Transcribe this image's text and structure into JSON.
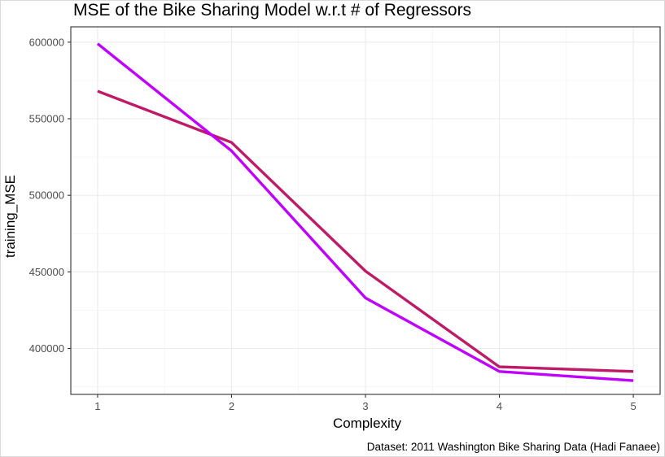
{
  "chart_data": {
    "type": "line",
    "title": "MSE of the Bike Sharing Model w.r.t # of Regressors",
    "xlabel": "Complexity",
    "ylabel": "training_MSE",
    "caption": "Dataset: 2011 Washington Bike Sharing Data (Hadi Fanaee)",
    "x": [
      1,
      2,
      3,
      4,
      5
    ],
    "xticks": [
      "1",
      "2",
      "3",
      "4",
      "5"
    ],
    "yticks": [
      "400000",
      "450000",
      "500000",
      "550000",
      "600000"
    ],
    "ytick_values": [
      400000,
      450000,
      500000,
      550000,
      600000
    ],
    "xlim": [
      0.8,
      5.2
    ],
    "ylim": [
      370000,
      610000
    ],
    "grid": true,
    "legend": "none",
    "series": [
      {
        "color": "#be1a67",
        "values": [
          568000,
          534500,
          450500,
          388000,
          385000
        ]
      },
      {
        "color": "#c000ff",
        "values": [
          599000,
          529000,
          433000,
          385000,
          379000
        ]
      }
    ]
  }
}
